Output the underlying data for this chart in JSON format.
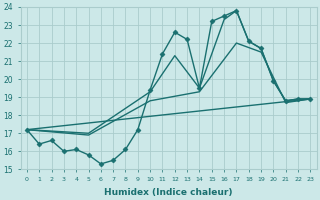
{
  "xlabel": "Humidex (Indice chaleur)",
  "xlim": [
    -0.5,
    23.5
  ],
  "ylim": [
    15,
    24
  ],
  "yticks": [
    15,
    16,
    17,
    18,
    19,
    20,
    21,
    22,
    23,
    24
  ],
  "xticks": [
    0,
    1,
    2,
    3,
    4,
    5,
    6,
    7,
    8,
    9,
    10,
    11,
    12,
    13,
    14,
    15,
    16,
    17,
    18,
    19,
    20,
    21,
    22,
    23
  ],
  "bg_color": "#cce8e8",
  "grid_color": "#aacccc",
  "line_color": "#1a7070",
  "lines": [
    {
      "x": [
        0,
        1,
        2,
        3,
        4,
        5,
        6,
        7,
        8,
        9,
        10,
        11,
        12,
        13,
        14,
        15,
        16,
        17,
        18,
        19,
        20,
        21,
        22,
        23
      ],
      "y": [
        17.2,
        16.4,
        16.6,
        16.0,
        16.1,
        15.8,
        15.3,
        15.5,
        16.1,
        17.2,
        19.4,
        21.4,
        22.6,
        22.2,
        19.5,
        23.2,
        23.5,
        23.8,
        22.1,
        21.7,
        19.9,
        18.8,
        18.9,
        18.9
      ],
      "marker": "D",
      "markersize": 2.5,
      "linewidth": 1.0
    },
    {
      "x": [
        0,
        5,
        10,
        12,
        14,
        16,
        17,
        18,
        19,
        20,
        21,
        22,
        23
      ],
      "y": [
        17.2,
        17.0,
        19.3,
        21.3,
        19.5,
        23.3,
        23.8,
        22.1,
        21.7,
        19.9,
        18.8,
        18.9,
        18.9
      ],
      "marker": null,
      "markersize": 0,
      "linewidth": 1.0
    },
    {
      "x": [
        0,
        5,
        10,
        14,
        17,
        19,
        21,
        23
      ],
      "y": [
        17.2,
        16.9,
        18.8,
        19.3,
        22.0,
        21.5,
        18.7,
        18.9
      ],
      "marker": null,
      "markersize": 0,
      "linewidth": 1.0
    },
    {
      "x": [
        0,
        23
      ],
      "y": [
        17.2,
        18.9
      ],
      "marker": null,
      "markersize": 0,
      "linewidth": 1.0
    }
  ]
}
